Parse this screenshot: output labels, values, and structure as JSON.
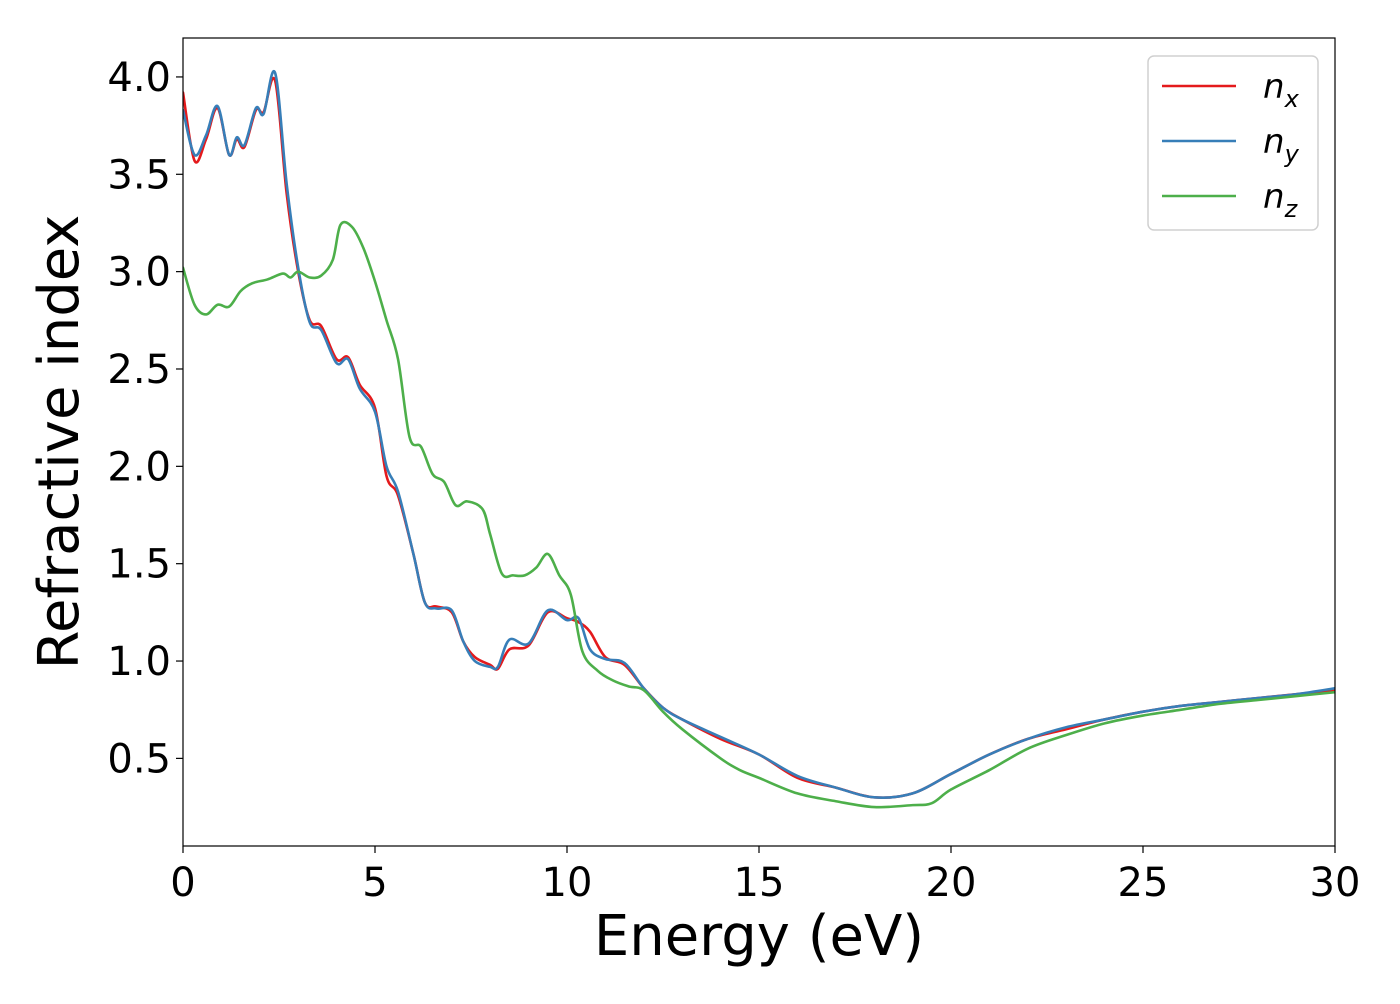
{
  "chart_data": {
    "type": "line",
    "xlabel": "Energy (eV)",
    "ylabel": "Refractive index",
    "xlim": [
      0,
      30
    ],
    "ylim": [
      0.05,
      4.2
    ],
    "xticks": [
      0,
      5,
      10,
      15,
      20,
      25,
      30
    ],
    "xtick_labels": [
      "0",
      "5",
      "10",
      "15",
      "20",
      "25",
      "30"
    ],
    "yticks": [
      0.5,
      1.0,
      1.5,
      2.0,
      2.5,
      3.0,
      3.5,
      4.0
    ],
    "ytick_labels": [
      "0.5",
      "1.0",
      "1.5",
      "2.0",
      "2.5",
      "3.0",
      "3.5",
      "4.0"
    ],
    "grid": false,
    "legend_position": "top-right",
    "series": [
      {
        "name": "n_x",
        "label_main": "n",
        "label_sub": "x",
        "color": "#e41a1c",
        "x": [
          0,
          0.3,
          0.6,
          0.9,
          1.2,
          1.4,
          1.6,
          1.9,
          2.1,
          2.4,
          2.7,
          3.0,
          3.3,
          3.6,
          4.0,
          4.3,
          4.6,
          5.0,
          5.3,
          5.6,
          6.0,
          6.3,
          6.6,
          7.0,
          7.3,
          7.6,
          8.0,
          8.2,
          8.5,
          9.0,
          9.5,
          10.0,
          10.3,
          10.6,
          11.0,
          11.5,
          12.0,
          12.5,
          13.0,
          14.0,
          15.0,
          16.0,
          17.0,
          18.0,
          19.0,
          20.0,
          21.0,
          22.0,
          23.0,
          24.0,
          25.0,
          26.0,
          27.0,
          28.0,
          29.0,
          30.0
        ],
        "y": [
          3.92,
          3.57,
          3.68,
          3.84,
          3.6,
          3.68,
          3.64,
          3.83,
          3.82,
          3.98,
          3.4,
          3.0,
          2.75,
          2.72,
          2.55,
          2.56,
          2.42,
          2.3,
          1.95,
          1.85,
          1.55,
          1.3,
          1.28,
          1.25,
          1.1,
          1.02,
          0.98,
          0.96,
          1.06,
          1.08,
          1.25,
          1.22,
          1.2,
          1.15,
          1.02,
          0.98,
          0.86,
          0.76,
          0.7,
          0.6,
          0.52,
          0.4,
          0.35,
          0.3,
          0.32,
          0.42,
          0.52,
          0.6,
          0.65,
          0.7,
          0.74,
          0.77,
          0.79,
          0.81,
          0.83,
          0.85
        ]
      },
      {
        "name": "n_y",
        "label_main": "n",
        "label_sub": "y",
        "color": "#377eb8",
        "x": [
          0,
          0.3,
          0.6,
          0.9,
          1.2,
          1.4,
          1.6,
          1.9,
          2.1,
          2.4,
          2.7,
          3.0,
          3.3,
          3.6,
          4.0,
          4.3,
          4.6,
          5.0,
          5.3,
          5.6,
          6.0,
          6.3,
          6.6,
          7.0,
          7.3,
          7.6,
          8.0,
          8.2,
          8.5,
          9.0,
          9.5,
          10.0,
          10.3,
          10.6,
          11.0,
          11.5,
          12.0,
          12.5,
          13.0,
          14.0,
          15.0,
          16.0,
          17.0,
          18.0,
          19.0,
          20.0,
          21.0,
          22.0,
          23.0,
          24.0,
          25.0,
          26.0,
          27.0,
          28.0,
          29.0,
          30.0
        ],
        "y": [
          3.83,
          3.6,
          3.7,
          3.85,
          3.6,
          3.69,
          3.65,
          3.84,
          3.81,
          4.02,
          3.45,
          3.02,
          2.74,
          2.7,
          2.53,
          2.55,
          2.4,
          2.28,
          2.0,
          1.87,
          1.55,
          1.3,
          1.27,
          1.26,
          1.1,
          1.0,
          0.97,
          0.97,
          1.11,
          1.09,
          1.26,
          1.21,
          1.22,
          1.06,
          1.01,
          0.99,
          0.86,
          0.76,
          0.7,
          0.61,
          0.52,
          0.41,
          0.35,
          0.3,
          0.32,
          0.42,
          0.52,
          0.6,
          0.66,
          0.7,
          0.74,
          0.77,
          0.79,
          0.81,
          0.83,
          0.86
        ]
      },
      {
        "name": "n_z",
        "label_main": "n",
        "label_sub": "z",
        "color": "#4daf4a",
        "x": [
          0,
          0.3,
          0.6,
          0.9,
          1.2,
          1.5,
          1.8,
          2.2,
          2.6,
          2.8,
          3.0,
          3.3,
          3.6,
          3.9,
          4.1,
          4.4,
          4.7,
          5.0,
          5.3,
          5.6,
          5.9,
          6.2,
          6.5,
          6.8,
          7.1,
          7.4,
          7.8,
          8.0,
          8.3,
          8.6,
          8.9,
          9.2,
          9.5,
          9.8,
          10.1,
          10.4,
          10.8,
          11.2,
          11.6,
          12.0,
          12.5,
          13.0,
          14.0,
          14.5,
          15.0,
          16.0,
          17.0,
          18.0,
          19.0,
          19.5,
          20.0,
          21.0,
          22.0,
          23.0,
          24.0,
          25.0,
          26.0,
          27.0,
          28.0,
          29.0,
          30.0
        ],
        "y": [
          3.02,
          2.83,
          2.78,
          2.83,
          2.82,
          2.9,
          2.94,
          2.96,
          2.99,
          2.97,
          3.0,
          2.97,
          2.98,
          3.06,
          3.24,
          3.23,
          3.12,
          2.95,
          2.75,
          2.55,
          2.15,
          2.1,
          1.96,
          1.92,
          1.8,
          1.82,
          1.78,
          1.65,
          1.45,
          1.44,
          1.44,
          1.48,
          1.55,
          1.44,
          1.34,
          1.05,
          0.95,
          0.9,
          0.87,
          0.85,
          0.74,
          0.65,
          0.5,
          0.44,
          0.4,
          0.32,
          0.28,
          0.25,
          0.26,
          0.27,
          0.34,
          0.44,
          0.55,
          0.62,
          0.68,
          0.72,
          0.75,
          0.78,
          0.8,
          0.82,
          0.84
        ]
      }
    ]
  }
}
